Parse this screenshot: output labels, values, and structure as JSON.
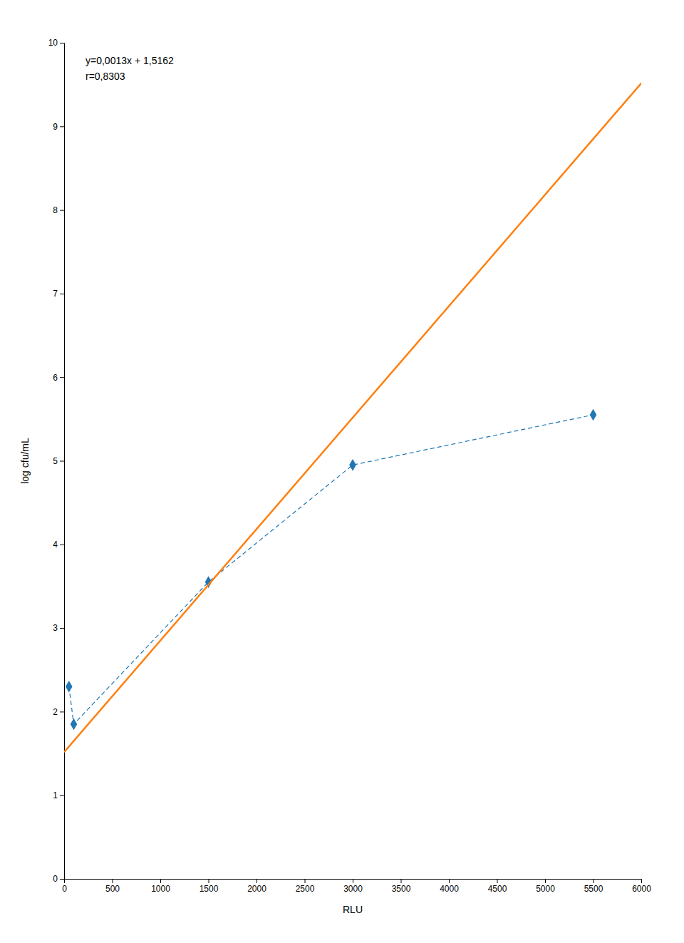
{
  "chart_data": {
    "type": "scatter",
    "xlabel": "RLU",
    "ylabel": "log cfu/mL",
    "annotations": [
      "y=0,0013x + 1,5162",
      "r=0,8303"
    ],
    "series": [
      {
        "type": "scatter",
        "x": [
          50,
          100,
          1500,
          3000,
          5500
        ],
        "values": [
          2.3,
          1.85,
          3.55,
          4.95,
          5.55
        ],
        "marker": "diamond",
        "line_style": "dashed"
      },
      {
        "type": "line",
        "x": [
          0,
          6000
        ],
        "values": [
          1.5162,
          9.5162
        ],
        "line_style": "solid"
      }
    ],
    "xlim": [
      0,
      6000
    ],
    "ylim": [
      0,
      10
    ],
    "xticks": [
      0,
      500,
      1000,
      1500,
      2000,
      2500,
      3000,
      3500,
      4000,
      4500,
      5000,
      5500,
      6000
    ],
    "yticks": [
      0,
      1,
      2,
      3,
      4,
      5,
      6,
      7,
      8,
      9,
      10
    ],
    "grid": false
  }
}
